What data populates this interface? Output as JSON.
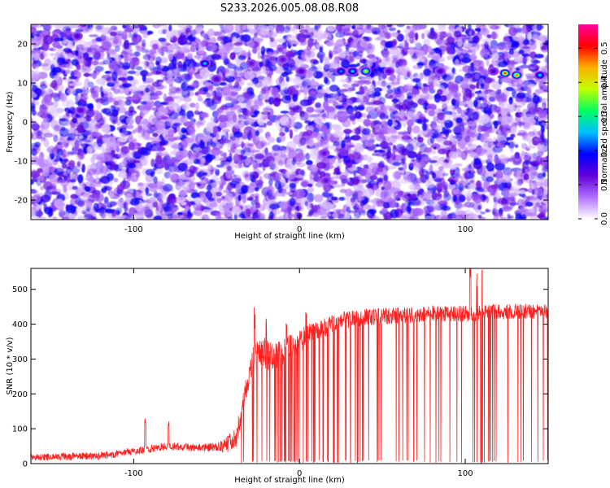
{
  "title": "S233.2026.005.08.08.R08",
  "chart_data": [
    {
      "type": "heatmap",
      "xlabel": "Height of straight line (km)",
      "ylabel": "Frequency (Hz)",
      "xlim": [
        -162,
        150
      ],
      "ylim": [
        -25,
        25
      ],
      "x_ticks": [
        -100,
        0,
        100
      ],
      "y_ticks": [
        -20,
        -10,
        0,
        10,
        20
      ],
      "colorbar": {
        "label": "Normalized spectral amplitude",
        "range": [
          0,
          0.57
        ],
        "ticks": [
          "0.0",
          "0.1",
          "0.2",
          "0.3",
          "0.4",
          "0.5"
        ],
        "colormap": [
          "#ffffff",
          "#b070ff",
          "#6000d8",
          "#0000ff",
          "#00c0ff",
          "#00ff60",
          "#c0ff00",
          "#ffb000",
          "#ff0000",
          "#ff00a0"
        ]
      },
      "peaks": [
        {
          "x": -57,
          "y": 15,
          "value": 0.25
        },
        {
          "x": 25,
          "y": 13,
          "value": 0.22
        },
        {
          "x": 32,
          "y": 13,
          "value": 0.25
        },
        {
          "x": 40,
          "y": 13,
          "value": 0.4
        },
        {
          "x": 124,
          "y": 12.5,
          "value": 0.48
        },
        {
          "x": 131,
          "y": 12,
          "value": 0.45
        },
        {
          "x": 145,
          "y": 12,
          "value": 0.25
        },
        {
          "x": 1,
          "y": 13,
          "value": 0.12
        },
        {
          "x": 54,
          "y": 13,
          "value": 0.12
        },
        {
          "x": 85,
          "y": 13,
          "value": 0.12
        },
        {
          "x": 117,
          "y": 13,
          "value": 0.12
        },
        {
          "x": -134,
          "y": 22,
          "value": 0.12
        },
        {
          "x": -132,
          "y": 3,
          "value": 0.12
        },
        {
          "x": -50,
          "y": 11,
          "value": 0.12
        },
        {
          "x": -29,
          "y": 15,
          "value": 0.1
        },
        {
          "x": 15,
          "y": -8,
          "value": 0.1
        },
        {
          "x": 16,
          "y": -15,
          "value": 0.1
        },
        {
          "x": -10,
          "y": 16,
          "value": 0.1
        }
      ],
      "texture": {
        "background_value": 0.05,
        "band_y": [
          11,
          16
        ]
      }
    },
    {
      "type": "line",
      "xlabel": "Height of straight line (km)",
      "ylabel": "SNR (10 * v/v)",
      "xlim": [
        -162,
        150
      ],
      "ylim": [
        0,
        560
      ],
      "x_ticks": [
        -100,
        0,
        100
      ],
      "y_ticks": [
        0,
        100,
        200,
        300,
        400,
        500
      ],
      "series": [
        {
          "color": "#ff2020",
          "profile": [
            [
              -162,
              18
            ],
            [
              -120,
              22
            ],
            [
              -100,
              35
            ],
            [
              -80,
              50
            ],
            [
              -60,
              45
            ],
            [
              -45,
              50
            ],
            [
              -38,
              80
            ],
            [
              -33,
              200
            ],
            [
              -28,
              300
            ],
            [
              -22,
              320
            ],
            [
              -15,
              300
            ],
            [
              -10,
              320
            ],
            [
              -3,
              340
            ],
            [
              5,
              370
            ],
            [
              15,
              390
            ],
            [
              25,
              410
            ],
            [
              40,
              420
            ],
            [
              60,
              425
            ],
            [
              80,
              430
            ],
            [
              100,
              430
            ],
            [
              120,
              435
            ],
            [
              150,
              440
            ]
          ],
          "noise": [
            [
              -162,
              10
            ],
            [
              -50,
              12
            ],
            [
              -40,
              30
            ],
            [
              -20,
              45
            ],
            [
              0,
              35
            ],
            [
              20,
              25
            ],
            [
              150,
              22
            ]
          ],
          "spikes": [
            [
              -93,
              85
            ],
            [
              -79,
              60
            ],
            [
              -27,
              110
            ],
            [
              -20,
              80
            ],
            [
              -8,
              75
            ],
            [
              4,
              40
            ],
            [
              103,
              120
            ],
            [
              110,
              110
            ],
            [
              107,
              90
            ]
          ],
          "dropout_prob": [
            [
              -162,
              0
            ],
            [
              -40,
              0
            ],
            [
              -32,
              0.05
            ],
            [
              -15,
              0.15
            ],
            [
              0,
              0.2
            ],
            [
              30,
              0.12
            ],
            [
              80,
              0.08
            ],
            [
              150,
              0.07
            ]
          ]
        }
      ]
    }
  ]
}
